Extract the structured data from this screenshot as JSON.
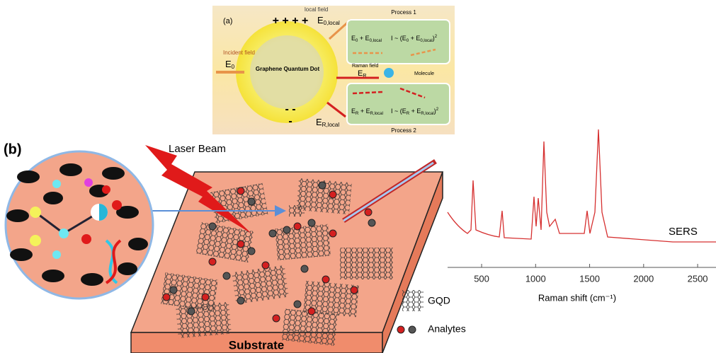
{
  "panel_a": {
    "label": "(a)",
    "local_field": "local field",
    "e0_local": [
      "E",
      "0,local"
    ],
    "process_1": "Process 1",
    "incident_field": "Incident field",
    "e0": [
      "E",
      "0"
    ],
    "gqd": "Graphene Quantum Dot",
    "sum_1": [
      "E",
      "0",
      " + E",
      "0,local"
    ],
    "intensity_1": [
      "I ~ (E",
      "0",
      " + E",
      "0,local",
      ")",
      "2"
    ],
    "raman_field": "Raman field",
    "er": [
      "E",
      "R"
    ],
    "molecule": "Molecule",
    "sum_2": [
      "E",
      "R",
      " + E",
      "R,local"
    ],
    "intensity_2": [
      "I ~ (E",
      "R",
      " + E",
      "R,local",
      ")",
      "2"
    ],
    "er_local": [
      "E",
      "R,local"
    ],
    "process_2": "Process 2",
    "plus_charges": "+ + + +",
    "minus_charges": "- -",
    "minus_single": "-"
  },
  "panel_b": {
    "label": "(b)",
    "laser_beam": "Laser Beam",
    "substrate": "Substrate",
    "legend_gqd": "GQD",
    "legend_analytes": "Analytes"
  },
  "chart_data": {
    "type": "line",
    "series_label": "SERS",
    "x_label": "Raman shift (cm⁻¹)",
    "xlim": [
      185,
      2670
    ],
    "xticks": [
      500,
      1000,
      1500,
      2000,
      2500
    ]
  }
}
